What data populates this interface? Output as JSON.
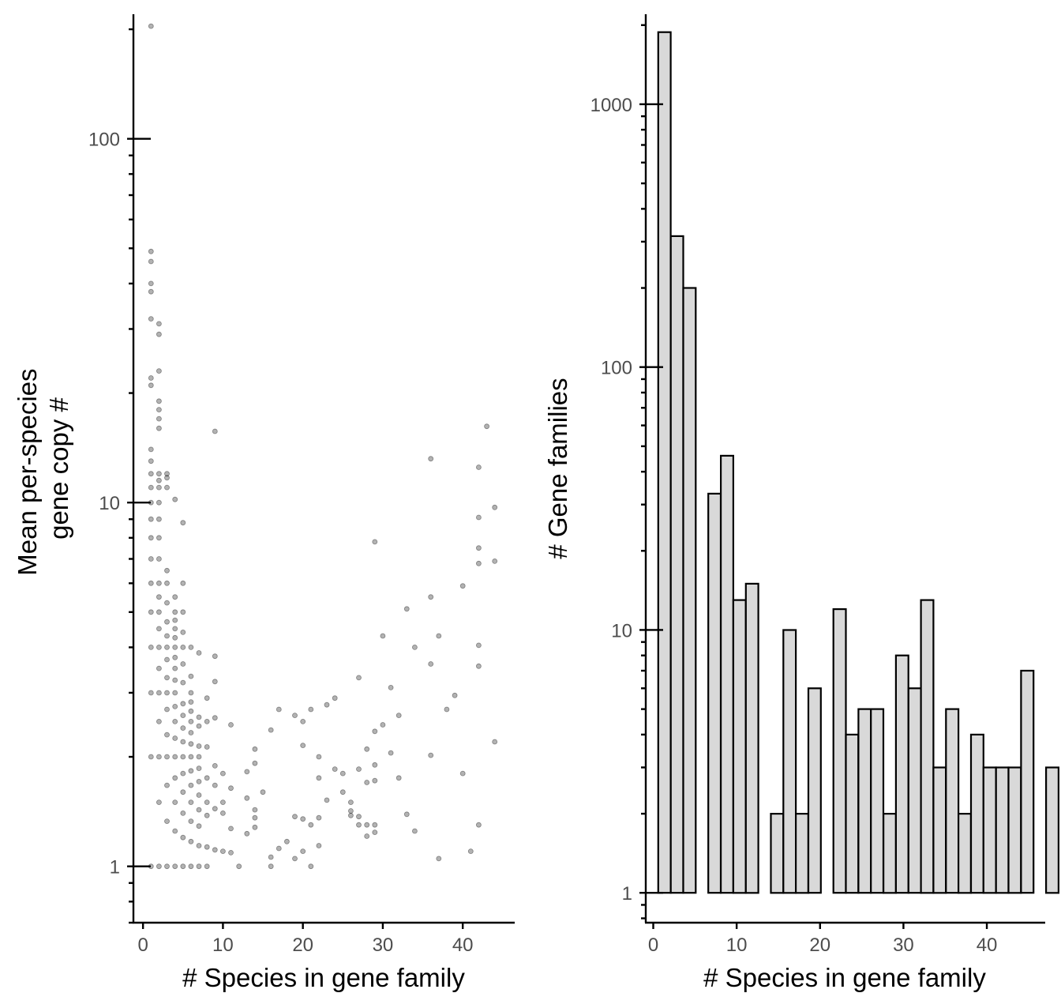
{
  "chart_data": [
    {
      "type": "scatter",
      "xlabel": "# Species in gene family",
      "ylabel_lines": [
        "Mean per-species",
        "gene copy #"
      ],
      "xlim": [
        -1.2,
        46.5
      ],
      "ylim": [
        0.7,
        220
      ],
      "ylog": true,
      "xticks": [
        0,
        10,
        20,
        30,
        40
      ],
      "xtick_labels": [
        "0",
        "10",
        "20",
        "30",
        "40"
      ],
      "yticks": [
        1,
        10,
        100
      ],
      "ytick_labels": [
        "1",
        "10",
        "100"
      ],
      "grid": false,
      "point_color": "#000000",
      "points": [
        [
          1,
          204
        ],
        [
          1,
          49
        ],
        [
          1,
          46
        ],
        [
          1,
          40
        ],
        [
          1,
          38
        ],
        [
          1,
          32
        ],
        [
          1,
          22
        ],
        [
          1,
          21
        ],
        [
          1,
          14
        ],
        [
          1,
          13
        ],
        [
          1,
          12
        ],
        [
          1,
          11
        ],
        [
          1,
          10
        ],
        [
          1,
          9
        ],
        [
          1,
          8
        ],
        [
          1,
          7
        ],
        [
          1,
          6
        ],
        [
          1,
          5
        ],
        [
          1,
          4
        ],
        [
          1,
          3
        ],
        [
          1,
          2
        ],
        [
          1,
          1
        ],
        [
          2,
          31
        ],
        [
          2,
          29
        ],
        [
          2,
          23
        ],
        [
          2,
          19
        ],
        [
          2,
          18
        ],
        [
          2,
          17
        ],
        [
          2,
          16
        ],
        [
          2,
          12
        ],
        [
          2,
          11.5
        ],
        [
          2,
          11
        ],
        [
          2,
          10
        ],
        [
          2,
          9
        ],
        [
          2,
          8
        ],
        [
          2,
          7
        ],
        [
          2,
          6
        ],
        [
          2,
          5.5
        ],
        [
          2,
          5
        ],
        [
          2,
          4.5
        ],
        [
          2,
          4
        ],
        [
          2,
          3.5
        ],
        [
          2,
          3
        ],
        [
          2,
          2.5
        ],
        [
          2,
          2
        ],
        [
          2,
          1.5
        ],
        [
          2,
          1
        ],
        [
          3,
          12
        ],
        [
          3,
          11.7
        ],
        [
          3,
          11
        ],
        [
          3,
          6.5
        ],
        [
          3,
          6
        ],
        [
          3,
          5.3
        ],
        [
          3,
          4.7
        ],
        [
          3,
          4.3
        ],
        [
          3,
          4
        ],
        [
          3,
          3.7
        ],
        [
          3,
          3.3
        ],
        [
          3,
          3
        ],
        [
          3,
          2.7
        ],
        [
          3,
          2.3
        ],
        [
          3,
          2
        ],
        [
          3,
          1.67
        ],
        [
          3,
          1.33
        ],
        [
          3,
          1
        ],
        [
          4,
          10.2
        ],
        [
          4,
          5.5
        ],
        [
          4,
          5
        ],
        [
          4,
          4.75
        ],
        [
          4,
          4.5
        ],
        [
          4,
          4.25
        ],
        [
          4,
          4
        ],
        [
          4,
          3.75
        ],
        [
          4,
          3.5
        ],
        [
          4,
          3.25
        ],
        [
          4,
          3
        ],
        [
          4,
          2.75
        ],
        [
          4,
          2.5
        ],
        [
          4,
          2.25
        ],
        [
          4,
          2
        ],
        [
          4,
          1.75
        ],
        [
          4,
          1.5
        ],
        [
          4,
          1.25
        ],
        [
          4,
          1
        ],
        [
          5,
          8.8
        ],
        [
          5,
          6
        ],
        [
          5,
          5
        ],
        [
          5,
          4.4
        ],
        [
          5,
          4
        ],
        [
          5,
          3.6
        ],
        [
          5,
          3.2
        ],
        [
          5,
          2.8
        ],
        [
          5,
          2.6
        ],
        [
          5,
          2.4
        ],
        [
          5,
          2.2
        ],
        [
          5,
          2
        ],
        [
          5,
          1.8
        ],
        [
          5,
          1.6
        ],
        [
          5,
          1.4
        ],
        [
          5,
          1.2
        ],
        [
          5,
          1
        ],
        [
          6,
          4
        ],
        [
          6,
          3.33
        ],
        [
          6,
          3
        ],
        [
          6,
          2.83
        ],
        [
          6,
          2.67
        ],
        [
          6,
          2.5
        ],
        [
          6,
          2.33
        ],
        [
          6,
          2.17
        ],
        [
          6,
          2
        ],
        [
          6,
          1.83
        ],
        [
          6,
          1.67
        ],
        [
          6,
          1.5
        ],
        [
          6,
          1.33
        ],
        [
          6,
          1.17
        ],
        [
          6,
          1
        ],
        [
          7,
          3.86
        ],
        [
          7,
          2.57
        ],
        [
          7,
          2.43
        ],
        [
          7,
          2.14
        ],
        [
          7,
          2
        ],
        [
          7,
          1.86
        ],
        [
          7,
          1.71
        ],
        [
          7,
          1.57
        ],
        [
          7,
          1.43
        ],
        [
          7,
          1.29
        ],
        [
          7,
          1.14
        ],
        [
          7,
          1
        ],
        [
          8,
          2.9
        ],
        [
          8,
          2.5
        ],
        [
          8,
          2.13
        ],
        [
          8,
          1.75
        ],
        [
          8,
          1.5
        ],
        [
          8,
          1.38
        ],
        [
          8,
          1.13
        ],
        [
          8,
          1
        ],
        [
          9,
          15.7
        ],
        [
          9,
          3.78
        ],
        [
          9,
          3.22
        ],
        [
          9,
          2.56
        ],
        [
          9,
          1.89
        ],
        [
          9,
          1.67
        ],
        [
          9,
          1.44
        ],
        [
          9,
          1.11
        ],
        [
          10,
          1.8
        ],
        [
          10,
          1.5
        ],
        [
          10,
          1.4
        ],
        [
          10,
          1.1
        ],
        [
          11,
          2.45
        ],
        [
          11,
          1.64
        ],
        [
          11,
          1.27
        ],
        [
          11,
          1.09
        ],
        [
          12,
          1
        ],
        [
          13,
          1.82
        ],
        [
          13,
          1.54
        ],
        [
          13,
          1.23
        ],
        [
          14,
          2.1
        ],
        [
          14,
          1.92
        ],
        [
          14,
          1.43
        ],
        [
          14,
          1.36
        ],
        [
          14,
          1.28
        ],
        [
          15,
          1.6
        ],
        [
          16,
          2.37
        ],
        [
          16,
          1.06
        ],
        [
          16,
          1
        ],
        [
          17,
          2.7
        ],
        [
          17,
          1.12
        ],
        [
          18,
          1.17
        ],
        [
          19,
          2.6
        ],
        [
          19,
          1.37
        ],
        [
          19,
          1.05
        ],
        [
          20,
          2.5
        ],
        [
          20,
          2.15
        ],
        [
          20,
          1.35
        ],
        [
          20,
          1.1
        ],
        [
          21,
          2.7
        ],
        [
          21,
          1
        ],
        [
          21,
          1.3
        ],
        [
          22,
          2
        ],
        [
          22,
          1.75
        ],
        [
          22,
          1.36
        ],
        [
          22,
          1.14
        ],
        [
          23,
          2.78
        ],
        [
          23,
          1.52
        ],
        [
          24,
          2.9
        ],
        [
          24,
          1.85
        ],
        [
          25,
          1.8
        ],
        [
          25,
          1.6
        ],
        [
          26,
          1.5
        ],
        [
          26,
          1.42
        ],
        [
          26,
          1.38
        ],
        [
          27,
          3.3
        ],
        [
          27,
          1.85
        ],
        [
          27,
          1.37
        ],
        [
          27,
          1.3
        ],
        [
          28,
          2.1
        ],
        [
          28,
          1.7
        ],
        [
          28,
          1.3
        ],
        [
          28,
          1.21
        ],
        [
          29,
          7.8
        ],
        [
          29,
          2.35
        ],
        [
          29,
          1.9
        ],
        [
          29,
          1.72
        ],
        [
          29,
          1.3
        ],
        [
          29,
          1.24
        ],
        [
          30,
          4.3
        ],
        [
          30,
          2.45
        ],
        [
          31,
          3.1
        ],
        [
          31,
          2.05
        ],
        [
          32,
          2.6
        ],
        [
          32,
          1.75
        ],
        [
          33,
          5.1
        ],
        [
          33,
          1.39
        ],
        [
          34,
          4
        ],
        [
          34,
          1.25
        ],
        [
          36,
          13.2
        ],
        [
          36,
          5.5
        ],
        [
          36,
          3.6
        ],
        [
          36,
          2.02
        ],
        [
          37,
          4.3
        ],
        [
          37,
          1.05
        ],
        [
          38,
          2.7
        ],
        [
          39,
          2.95
        ],
        [
          40,
          5.9
        ],
        [
          40,
          1.8
        ],
        [
          41,
          1.1
        ],
        [
          42,
          12.5
        ],
        [
          42,
          9.1
        ],
        [
          42,
          7.5
        ],
        [
          42,
          6.8
        ],
        [
          42,
          4.05
        ],
        [
          42,
          3.55
        ],
        [
          42,
          1.3
        ],
        [
          43,
          16.2
        ],
        [
          44,
          9.7
        ],
        [
          44,
          6.9
        ],
        [
          44,
          2.2
        ]
      ]
    },
    {
      "type": "bar",
      "xlabel": "# Species in gene family",
      "ylabel": "# Gene families",
      "xlim": [
        -0.9,
        47
      ],
      "ylim": [
        0.77,
        2200
      ],
      "ylog": true,
      "bin_width": 1.5,
      "bin_start": 0.6,
      "xticks": [
        0,
        10,
        20,
        30,
        40
      ],
      "xtick_labels": [
        "0",
        "10",
        "20",
        "30",
        "40"
      ],
      "yticks": [
        1,
        10,
        100,
        1000
      ],
      "ytick_labels": [
        "1",
        "10",
        "100",
        "1000"
      ],
      "grid": false,
      "bar_fill": "#d9d9d9",
      "values": [
        1880,
        315,
        200,
        0,
        33,
        46,
        13,
        15,
        0,
        2,
        10,
        2,
        6,
        0,
        12,
        4,
        5,
        5,
        2,
        8,
        6,
        13,
        3,
        5,
        2,
        4,
        3,
        3,
        3,
        7,
        0,
        3
      ]
    }
  ]
}
